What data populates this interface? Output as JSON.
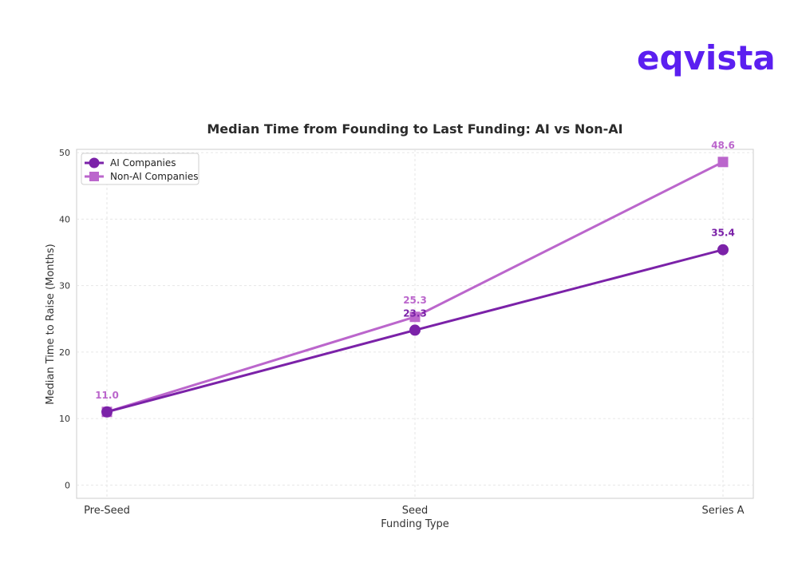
{
  "brand": {
    "logo_text": "eqvista",
    "color": "#5b1ff0"
  },
  "chart_data": {
    "type": "line",
    "title": "Median Time from Founding to Last Funding: AI vs Non-AI",
    "xlabel": "Funding Type",
    "ylabel": "Median Time to Raise (Months)",
    "categories": [
      "Pre-Seed",
      "Seed",
      "Series A"
    ],
    "ylim": [
      -2,
      50.5
    ],
    "yticks": [
      0,
      10,
      20,
      30,
      40,
      50
    ],
    "grid": true,
    "legend_position": "top-left",
    "series": [
      {
        "name": "AI Companies",
        "values": [
          11.0,
          23.3,
          35.4
        ],
        "labels": [
          "",
          "23.3",
          "35.4"
        ],
        "color": "#7b22a8",
        "marker": "circle"
      },
      {
        "name": "Non-AI Companies",
        "values": [
          11.0,
          25.3,
          48.6
        ],
        "labels": [
          "11.0",
          "25.3",
          "48.6"
        ],
        "color": "#bb66cc",
        "marker": "square"
      }
    ]
  }
}
